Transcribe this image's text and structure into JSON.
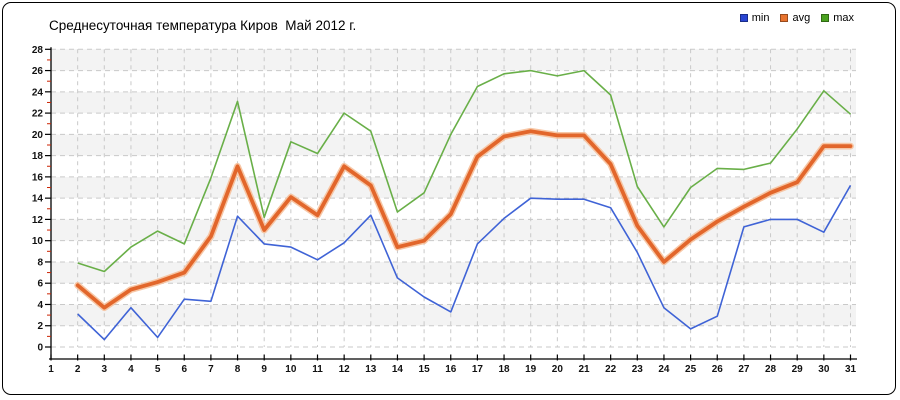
{
  "title": "Среднесуточная температура Киров  Май 2012 г.",
  "legend": {
    "items": [
      {
        "id": "min",
        "label": "min",
        "swatch_color": "#2945d2"
      },
      {
        "id": "avg",
        "label": "avg",
        "swatch_color": "#e8732e"
      },
      {
        "id": "max",
        "label": "max",
        "swatch_color": "#4aa21f"
      }
    ],
    "position": "top-right"
  },
  "chart_data": {
    "type": "line",
    "title": "Среднесуточная температура Киров  Май 2012 г.",
    "xlabel": "",
    "ylabel": "",
    "x_days": [
      2,
      3,
      4,
      5,
      6,
      7,
      8,
      9,
      10,
      11,
      12,
      13,
      14,
      15,
      16,
      17,
      18,
      19,
      20,
      21,
      22,
      23,
      24,
      25,
      26,
      27,
      28,
      29,
      30,
      31
    ],
    "series": [
      {
        "name": "min",
        "color": "#3f63d6",
        "width": 1.6,
        "values": [
          3.1,
          0.7,
          3.7,
          0.9,
          4.5,
          4.3,
          12.3,
          9.7,
          9.4,
          8.2,
          9.8,
          12.4,
          6.5,
          4.7,
          3.3,
          9.7,
          12.1,
          14,
          13.9,
          13.9,
          13.1,
          8.9,
          3.7,
          1.7,
          2.9,
          11.3,
          12,
          12,
          10.8,
          15.2
        ]
      },
      {
        "name": "avg",
        "color": "#e2662b",
        "halo_color": "#f6bd97",
        "width": 3.8,
        "values": [
          5.8,
          3.7,
          5.4,
          6.1,
          7,
          10.4,
          17,
          11,
          14.1,
          12.4,
          17,
          15.2,
          9.4,
          10,
          12.5,
          17.9,
          19.8,
          20.3,
          19.9,
          19.9,
          17.2,
          11.4,
          8,
          10.1,
          11.8,
          13.2,
          14.5,
          15.5,
          18.9,
          18.9
        ]
      },
      {
        "name": "max",
        "color": "#69af48",
        "width": 1.6,
        "values": [
          7.9,
          7.1,
          9.4,
          10.9,
          9.7,
          15.9,
          23.1,
          12.2,
          19.3,
          18.2,
          22,
          20.3,
          12.7,
          14.5,
          20,
          24.5,
          25.7,
          26,
          25.5,
          26,
          23.7,
          15.1,
          11.3,
          15,
          16.8,
          16.7,
          17.3,
          20.5,
          24.1,
          21.9
        ]
      }
    ],
    "x_ticks": [
      1,
      2,
      3,
      4,
      5,
      6,
      7,
      8,
      9,
      10,
      11,
      12,
      13,
      14,
      15,
      16,
      17,
      18,
      19,
      20,
      21,
      22,
      23,
      24,
      25,
      26,
      27,
      28,
      29,
      30,
      31
    ],
    "y_ticks": [
      0,
      2,
      4,
      6,
      8,
      10,
      12,
      14,
      16,
      18,
      20,
      22,
      24,
      26,
      28
    ],
    "ylim": [
      0,
      28
    ],
    "grid": true,
    "legend_position": "top-right",
    "colors": {
      "grid_line": "#c9c9c9",
      "band_gray": "#f3f3f3",
      "band_white": "#ffffff",
      "axis": "#000000",
      "minor_tick_red": "#cc2200",
      "tick_label": "#111111"
    }
  }
}
